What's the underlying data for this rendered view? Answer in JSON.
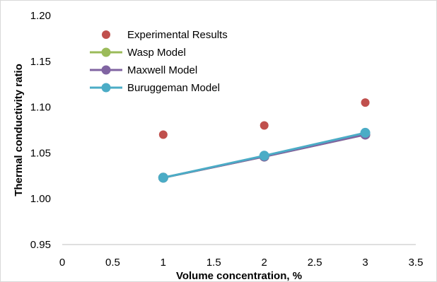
{
  "chart_data": {
    "type": "scatter",
    "xlabel": "Volume concentration, %",
    "ylabel": "Thermal conductivity ratio",
    "xlim": [
      0,
      3.5
    ],
    "ylim": [
      0.95,
      1.2
    ],
    "x_ticks": [
      "0",
      "0.5",
      "1",
      "1.5",
      "2",
      "2.5",
      "3",
      "3.5"
    ],
    "x_tick_values": [
      0,
      0.5,
      1,
      1.5,
      2,
      2.5,
      3,
      3.5
    ],
    "y_ticks": [
      "0.95",
      "1.00",
      "1.05",
      "1.10",
      "1.15",
      "1.20"
    ],
    "y_tick_values": [
      0.95,
      1.0,
      1.05,
      1.1,
      1.15,
      1.2
    ],
    "grid": false,
    "legend_position": "top-left",
    "series": [
      {
        "name": "Experimental Results",
        "style": "markers",
        "color": "#c0504d",
        "x": [
          1,
          2,
          3
        ],
        "y": [
          1.07,
          1.08,
          1.105
        ]
      },
      {
        "name": "Wasp Model",
        "style": "line-markers",
        "color": "#9bbb59",
        "x": [
          1,
          2,
          3
        ],
        "y": [
          1.023,
          1.046,
          1.07
        ]
      },
      {
        "name": "Maxwell Model",
        "style": "line-markers",
        "color": "#8064a2",
        "x": [
          1,
          2,
          3
        ],
        "y": [
          1.023,
          1.046,
          1.07
        ]
      },
      {
        "name": "Buruggeman Model",
        "style": "line-markers",
        "color": "#4bacc6",
        "x": [
          1,
          2,
          3
        ],
        "y": [
          1.023,
          1.047,
          1.072
        ]
      }
    ]
  }
}
